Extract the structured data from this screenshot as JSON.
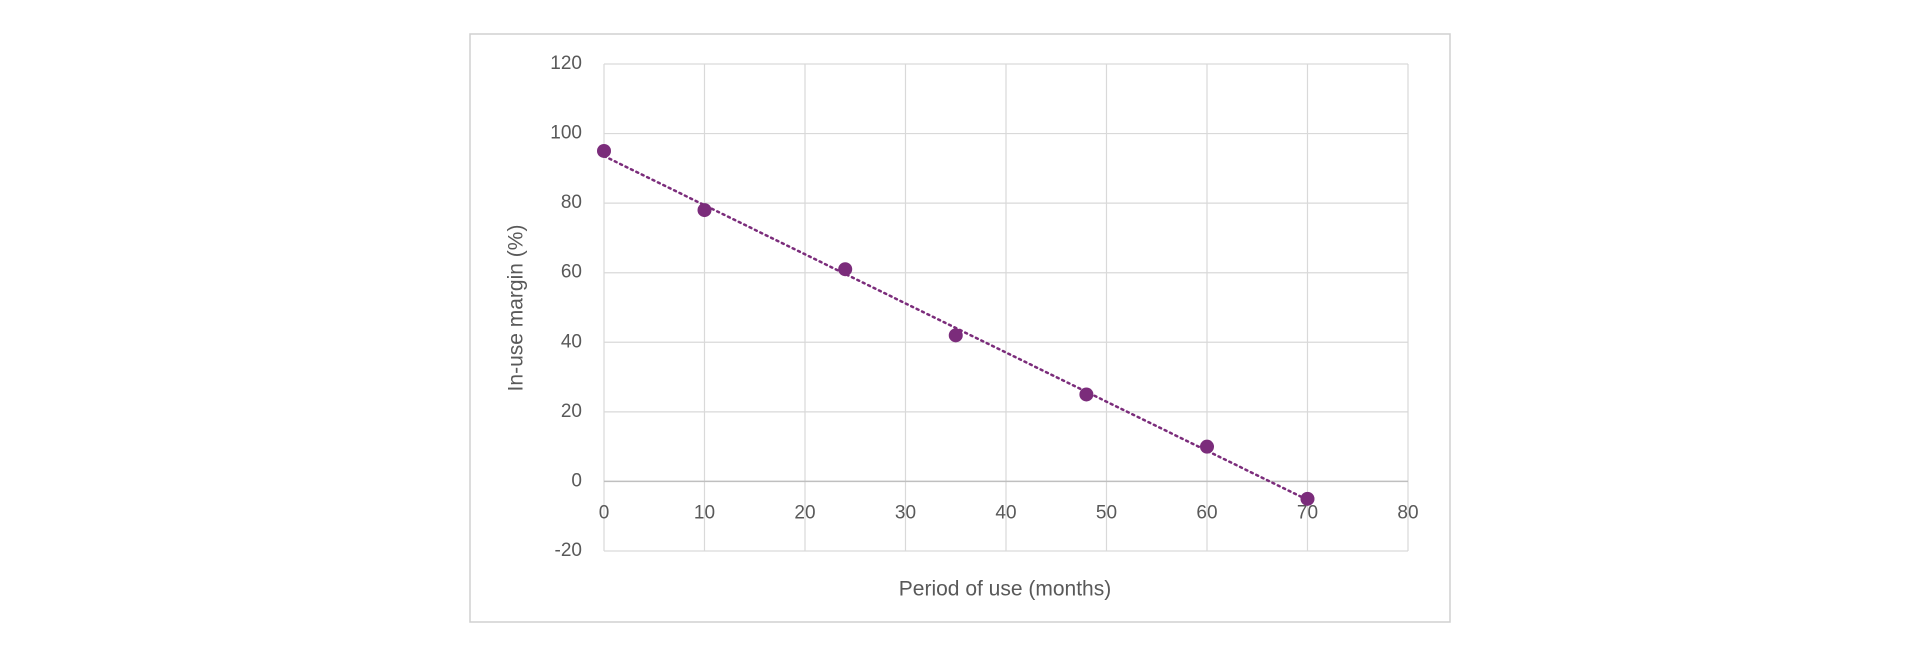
{
  "chart_data": {
    "type": "scatter",
    "x_label": "Period of use (months)",
    "y_label": "In-use margin (%)",
    "x": [
      0,
      10,
      24,
      35,
      48,
      60,
      70
    ],
    "values": [
      95,
      78,
      61,
      42,
      25,
      10,
      -5
    ],
    "color": "#7b2c7b",
    "trendline": "linear",
    "xlim": [
      0,
      80
    ],
    "xticks": [
      0,
      10,
      20,
      30,
      40,
      50,
      60,
      70,
      80
    ],
    "ylim": [
      -20,
      120
    ],
    "yticks": [
      -20,
      0,
      20,
      40,
      60,
      80,
      100,
      120
    ],
    "grid": true
  }
}
